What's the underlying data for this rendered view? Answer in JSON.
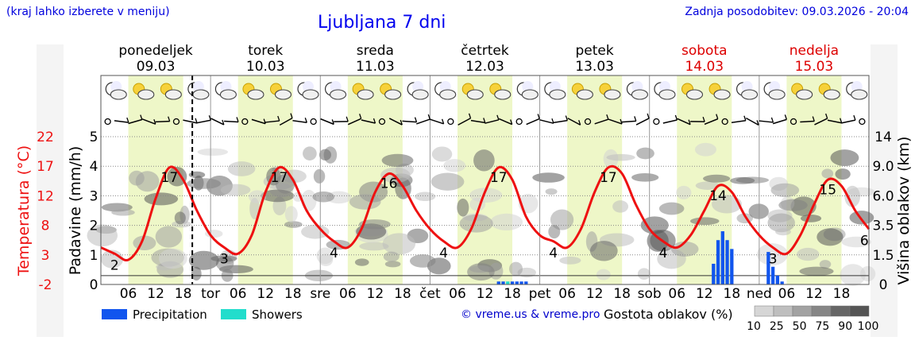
{
  "header": {
    "left_note": "(kraj lahko izberete v meniju)",
    "title": "Ljubljana 7 dni",
    "updated": "Zadnja posodobitev: 09.03.2026 - 20:04"
  },
  "days": [
    {
      "name": "ponedeljek",
      "date": "09.03",
      "abbr": "",
      "color": "#000000"
    },
    {
      "name": "torek",
      "date": "10.03",
      "abbr": "tor",
      "color": "#000000"
    },
    {
      "name": "sreda",
      "date": "11.03",
      "abbr": "sre",
      "color": "#000000"
    },
    {
      "name": "četrtek",
      "date": "12.03",
      "abbr": "čet",
      "color": "#000000"
    },
    {
      "name": "petek",
      "date": "13.03",
      "abbr": "pet",
      "color": "#000000"
    },
    {
      "name": "sobota",
      "date": "14.03",
      "abbr": "sob",
      "color": "#dd0000"
    },
    {
      "name": "nedelja",
      "date": "15.03",
      "abbr": "ned",
      "color": "#dd0000"
    }
  ],
  "hour_ticks": [
    "06",
    "12",
    "18"
  ],
  "axes": {
    "temperature_label": "Temperatura (°C)",
    "temperature_ticks": [
      "22",
      "17",
      "12",
      "8",
      "3",
      "-2"
    ],
    "precip_label": "Padavine (mm/h)",
    "precip_ticks": [
      "5",
      "4",
      "3",
      "2",
      "1",
      "0"
    ],
    "cloud_label": "Višina oblakov (km)",
    "cloud_ticks": [
      "14",
      "9.0",
      "6.0",
      "3.5",
      "1.5",
      "0"
    ]
  },
  "legend": {
    "precipitation": "Precipitation",
    "showers": "Showers",
    "credit": "© vreme.us & vreme.pro",
    "cloud_density_title": "Gostota oblakov (%)",
    "cloud_density_ticks": [
      "10",
      "25",
      "50",
      "75",
      "90",
      "100"
    ]
  },
  "colors": {
    "temperature": "#ee1111",
    "precipitation": "#1155ee",
    "showers": "#22ddcc",
    "daylight": "#eef7c8",
    "weekend": "#dd0000",
    "link": "#0000dd"
  },
  "chart_data": {
    "type": "line",
    "x_unit": "hour since 09.03 00:00",
    "temperature": {
      "label": "Temperatura (°C)",
      "points": [
        [
          0,
          4
        ],
        [
          3,
          3
        ],
        [
          6,
          2
        ],
        [
          9,
          5
        ],
        [
          12,
          12
        ],
        [
          15,
          17
        ],
        [
          18,
          15
        ],
        [
          21,
          10
        ],
        [
          24,
          6
        ],
        [
          27,
          4
        ],
        [
          30,
          3
        ],
        [
          33,
          6
        ],
        [
          36,
          13
        ],
        [
          39,
          17
        ],
        [
          42,
          15
        ],
        [
          45,
          10
        ],
        [
          48,
          7
        ],
        [
          51,
          5
        ],
        [
          54,
          4
        ],
        [
          57,
          7
        ],
        [
          60,
          13
        ],
        [
          63,
          16
        ],
        [
          66,
          14
        ],
        [
          69,
          10
        ],
        [
          72,
          7
        ],
        [
          75,
          5
        ],
        [
          78,
          4
        ],
        [
          81,
          7
        ],
        [
          84,
          13
        ],
        [
          87,
          17
        ],
        [
          90,
          15
        ],
        [
          93,
          9
        ],
        [
          96,
          6
        ],
        [
          99,
          5
        ],
        [
          102,
          4
        ],
        [
          105,
          7
        ],
        [
          108,
          13
        ],
        [
          111,
          17
        ],
        [
          114,
          16
        ],
        [
          117,
          11
        ],
        [
          120,
          7
        ],
        [
          123,
          5
        ],
        [
          126,
          4
        ],
        [
          129,
          6
        ],
        [
          132,
          10
        ],
        [
          135,
          14
        ],
        [
          138,
          13
        ],
        [
          141,
          9
        ],
        [
          144,
          6
        ],
        [
          147,
          4
        ],
        [
          150,
          3
        ],
        [
          153,
          6
        ],
        [
          156,
          11
        ],
        [
          159,
          15
        ],
        [
          162,
          14
        ],
        [
          165,
          10
        ],
        [
          168,
          7
        ]
      ],
      "labels": [
        {
          "x": 3,
          "text": "2"
        },
        {
          "x": 15,
          "text": "17"
        },
        {
          "x": 27,
          "text": "3"
        },
        {
          "x": 39,
          "text": "17"
        },
        {
          "x": 51,
          "text": "4"
        },
        {
          "x": 63,
          "text": "16"
        },
        {
          "x": 75,
          "text": "4"
        },
        {
          "x": 87,
          "text": "17"
        },
        {
          "x": 99,
          "text": "4"
        },
        {
          "x": 111,
          "text": "17"
        },
        {
          "x": 123,
          "text": "4"
        },
        {
          "x": 135,
          "text": "14"
        },
        {
          "x": 147,
          "text": "3"
        },
        {
          "x": 159,
          "text": "15"
        },
        {
          "x": 167,
          "text": "6"
        }
      ]
    },
    "precipitation": {
      "label": "Padavine (mm/h)",
      "bars": [
        [
          87,
          0.1
        ],
        [
          88,
          0.1
        ],
        [
          90,
          0.1
        ],
        [
          91,
          0.1
        ],
        [
          92,
          0.1
        ],
        [
          93,
          0.1
        ],
        [
          134,
          0.7
        ],
        [
          135,
          1.5
        ],
        [
          136,
          1.8
        ],
        [
          137,
          1.5
        ],
        [
          138,
          1.2
        ],
        [
          146,
          1.1
        ],
        [
          147,
          0.6
        ],
        [
          148,
          0.3
        ],
        [
          149,
          0.1
        ]
      ],
      "showers": [
        [
          89,
          0.1
        ]
      ]
    },
    "cloud_cover": {
      "label": "Višina oblakov (km)",
      "density_scale": [
        10,
        25,
        50,
        75,
        90,
        100
      ]
    },
    "ylim_precip": [
      0,
      5
    ],
    "ylim_temp": [
      -2,
      22
    ],
    "current_time_hour": 20
  }
}
